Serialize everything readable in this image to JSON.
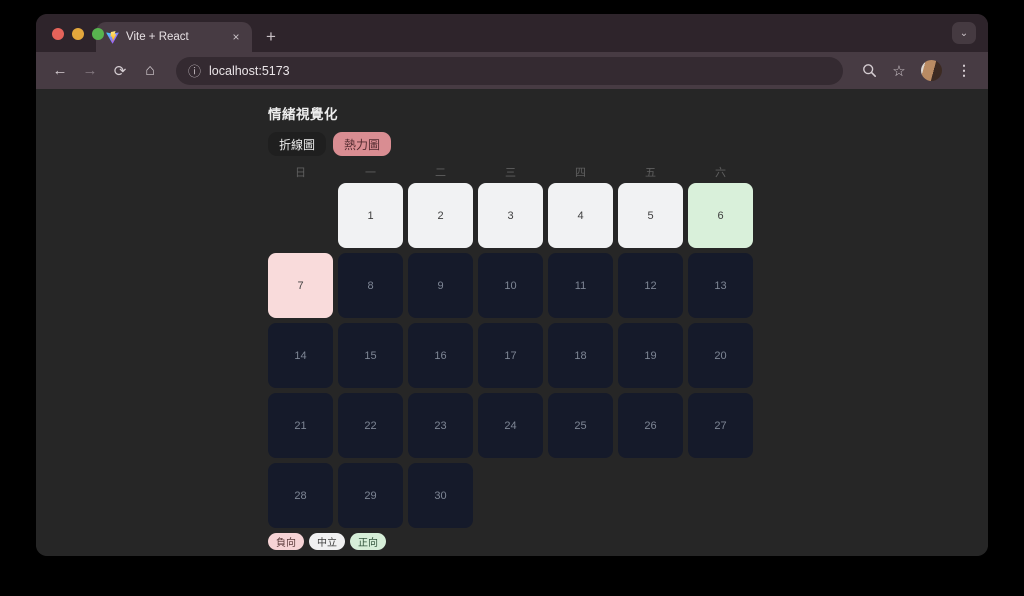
{
  "browser": {
    "tab_title": "Vite + React",
    "close_glyph": "×",
    "new_tab_glyph": "+",
    "window_chevron_glyph": "⌄",
    "back_glyph": "←",
    "forward_glyph": "→",
    "refresh_glyph": "⟳",
    "home_glyph": "⌂",
    "info_glyph": "ⓘ",
    "url": "localhost:5173",
    "star_glyph": "☆",
    "menu_glyph": "⋮"
  },
  "page": {
    "title": "情緒視覺化",
    "view_tabs": [
      {
        "label": "折線圖",
        "active": false
      },
      {
        "label": "熱力圖",
        "active": true
      }
    ],
    "weekdays": [
      "日",
      "一",
      "二",
      "三",
      "四",
      "五",
      "六"
    ],
    "calendar": {
      "start_offset": 1,
      "days": [
        {
          "day": 1,
          "sentiment": "neutral"
        },
        {
          "day": 2,
          "sentiment": "neutral"
        },
        {
          "day": 3,
          "sentiment": "neutral"
        },
        {
          "day": 4,
          "sentiment": "neutral"
        },
        {
          "day": 5,
          "sentiment": "neutral"
        },
        {
          "day": 6,
          "sentiment": "positive"
        },
        {
          "day": 7,
          "sentiment": "negative"
        },
        {
          "day": 8,
          "sentiment": "none"
        },
        {
          "day": 9,
          "sentiment": "none"
        },
        {
          "day": 10,
          "sentiment": "none"
        },
        {
          "day": 11,
          "sentiment": "none"
        },
        {
          "day": 12,
          "sentiment": "none"
        },
        {
          "day": 13,
          "sentiment": "none"
        },
        {
          "day": 14,
          "sentiment": "none"
        },
        {
          "day": 15,
          "sentiment": "none"
        },
        {
          "day": 16,
          "sentiment": "none"
        },
        {
          "day": 17,
          "sentiment": "none"
        },
        {
          "day": 18,
          "sentiment": "none"
        },
        {
          "day": 19,
          "sentiment": "none"
        },
        {
          "day": 20,
          "sentiment": "none"
        },
        {
          "day": 21,
          "sentiment": "none"
        },
        {
          "day": 22,
          "sentiment": "none"
        },
        {
          "day": 23,
          "sentiment": "none"
        },
        {
          "day": 24,
          "sentiment": "none"
        },
        {
          "day": 25,
          "sentiment": "none"
        },
        {
          "day": 26,
          "sentiment": "none"
        },
        {
          "day": 27,
          "sentiment": "none"
        },
        {
          "day": 28,
          "sentiment": "none"
        },
        {
          "day": 29,
          "sentiment": "none"
        },
        {
          "day": 30,
          "sentiment": "none"
        }
      ]
    },
    "legend": [
      {
        "label": "負向",
        "type": "negative"
      },
      {
        "label": "中立",
        "type": "neutral"
      },
      {
        "label": "正向",
        "type": "positive"
      }
    ],
    "colors": {
      "negative": "#f9dbdb",
      "neutral": "#f1f2f3",
      "positive": "#d9f0da",
      "empty": "#151a2a",
      "accent": "#d98d92"
    }
  }
}
